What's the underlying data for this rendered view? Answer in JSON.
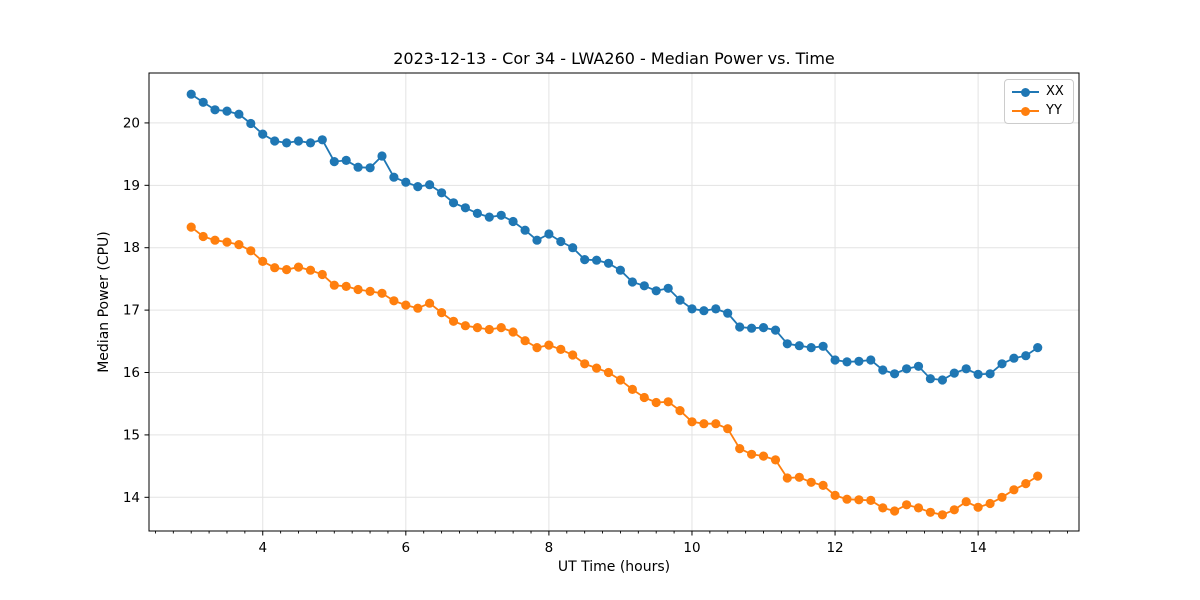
{
  "title": "2023-12-13 - Cor 34 - LWA260 - Median Power vs. Time",
  "chart_data": {
    "type": "line",
    "title": "2023-12-13 - Cor 34 - LWA260 - Median Power vs. Time",
    "xlabel": "UT Time (hours)",
    "ylabel": "Median Power (CPU)",
    "xlim": [
      2.41,
      15.41
    ],
    "ylim": [
      13.46,
      20.8
    ],
    "x_ticks": [
      4,
      6,
      8,
      10,
      12,
      14
    ],
    "y_ticks": [
      14,
      15,
      16,
      17,
      18,
      19,
      20
    ],
    "x_minor_tick_step": 0.25,
    "grid": true,
    "grid_color": "#e3e3e3",
    "spine_color": "#000000",
    "legend_position": "upper right",
    "marker": "o",
    "x": [
      3.0,
      3.167,
      3.333,
      3.5,
      3.667,
      3.833,
      4.0,
      4.167,
      4.333,
      4.5,
      4.667,
      4.833,
      5.0,
      5.167,
      5.333,
      5.5,
      5.667,
      5.833,
      6.0,
      6.167,
      6.333,
      6.5,
      6.667,
      6.833,
      7.0,
      7.167,
      7.333,
      7.5,
      7.667,
      7.833,
      8.0,
      8.167,
      8.333,
      8.5,
      8.667,
      8.833,
      9.0,
      9.167,
      9.333,
      9.5,
      9.667,
      9.833,
      10.0,
      10.167,
      10.333,
      10.5,
      10.667,
      10.833,
      11.0,
      11.167,
      11.333,
      11.5,
      11.667,
      11.833,
      12.0,
      12.167,
      12.333,
      12.5,
      12.667,
      12.833,
      13.0,
      13.167,
      13.333,
      13.5,
      13.667,
      13.833,
      14.0,
      14.167,
      14.333,
      14.5,
      14.667,
      14.833
    ],
    "series": [
      {
        "name": "XX",
        "color": "#1f77b4",
        "values": [
          20.46,
          20.33,
          20.21,
          20.19,
          20.14,
          19.99,
          19.82,
          19.71,
          19.68,
          19.71,
          19.68,
          19.73,
          19.38,
          19.4,
          19.29,
          19.28,
          19.47,
          19.13,
          19.05,
          18.98,
          19.01,
          18.88,
          18.72,
          18.64,
          18.55,
          18.49,
          18.52,
          18.42,
          18.28,
          18.12,
          18.22,
          18.1,
          18.0,
          17.81,
          17.8,
          17.75,
          17.64,
          17.45,
          17.39,
          17.31,
          17.35,
          17.16,
          17.02,
          16.99,
          17.02,
          16.95,
          16.73,
          16.71,
          16.72,
          16.68,
          16.46,
          16.43,
          16.4,
          16.42,
          16.2,
          16.17,
          16.18,
          16.2,
          16.04,
          15.98,
          16.06,
          16.1,
          15.9,
          15.88,
          15.99,
          16.06,
          15.97,
          15.98,
          16.14,
          16.23,
          16.27,
          16.4
        ]
      },
      {
        "name": "YY",
        "color": "#ff7f0e",
        "values": [
          18.33,
          18.18,
          18.12,
          18.09,
          18.05,
          17.95,
          17.78,
          17.68,
          17.65,
          17.69,
          17.64,
          17.57,
          17.4,
          17.38,
          17.33,
          17.3,
          17.27,
          17.15,
          17.08,
          17.03,
          17.11,
          16.96,
          16.82,
          16.75,
          16.72,
          16.69,
          16.72,
          16.65,
          16.51,
          16.4,
          16.44,
          16.37,
          16.28,
          16.14,
          16.07,
          16.0,
          15.88,
          15.73,
          15.6,
          15.52,
          15.53,
          15.39,
          15.21,
          15.18,
          15.18,
          15.1,
          14.78,
          14.69,
          14.66,
          14.6,
          14.31,
          14.32,
          14.24,
          14.19,
          14.03,
          13.97,
          13.96,
          13.95,
          13.83,
          13.78,
          13.88,
          13.83,
          13.76,
          13.72,
          13.8,
          13.93,
          13.84,
          13.9,
          14.0,
          14.12,
          14.22,
          14.34
        ]
      }
    ]
  }
}
